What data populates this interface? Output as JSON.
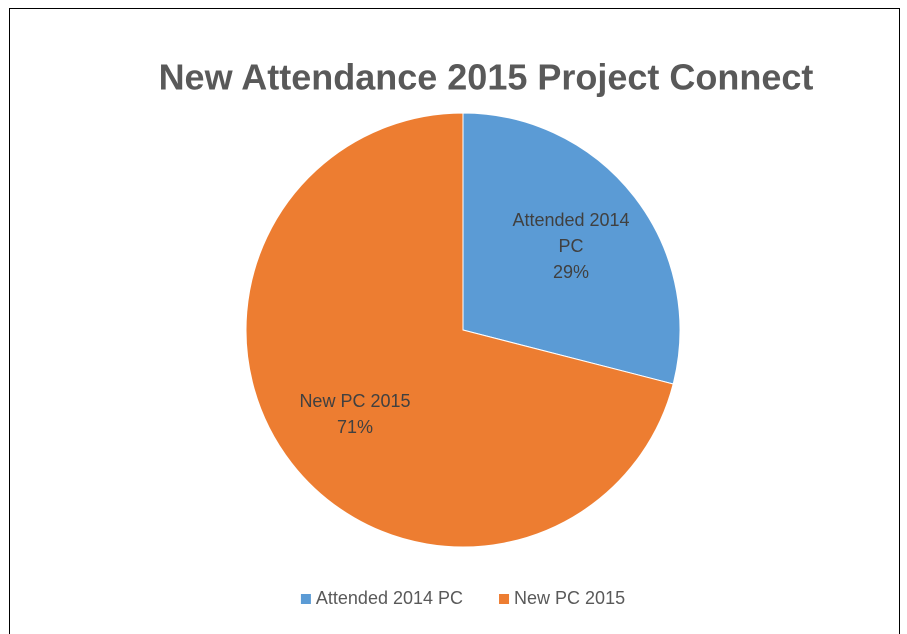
{
  "chart_data": {
    "type": "pie",
    "title": "New Attendance 2015 Project Connect",
    "categories": [
      "Attended 2014 PC",
      "New PC 2015"
    ],
    "values": [
      29,
      71
    ],
    "value_labels": [
      "29%",
      "71%"
    ],
    "colors": [
      "#5b9bd5",
      "#ed7d31"
    ],
    "legend": "bottom"
  }
}
